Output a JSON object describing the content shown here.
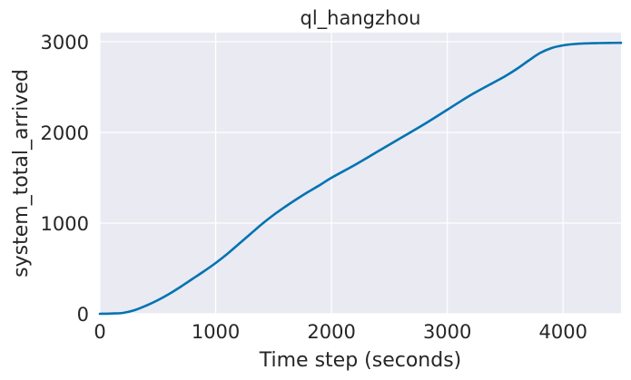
{
  "chart_data": {
    "type": "line",
    "title": "ql_hangzhou",
    "xlabel": "Time step (seconds)",
    "ylabel": "system_total_arrived",
    "xlim": [
      0,
      4500
    ],
    "ylim": [
      0,
      3100
    ],
    "xticks": [
      0,
      1000,
      2000,
      3000,
      4000
    ],
    "yticks": [
      0,
      1000,
      2000,
      3000
    ],
    "xtick_labels": [
      "0",
      "1000",
      "2000",
      "3000",
      "4000"
    ],
    "ytick_labels": [
      "0",
      "1000",
      "2000",
      "3000"
    ],
    "grid": true,
    "background": "#eaeaf2",
    "series": [
      {
        "color": "#0173b2",
        "x": [
          0,
          100,
          200,
          300,
          400,
          500,
          600,
          700,
          800,
          900,
          1000,
          1100,
          1200,
          1300,
          1400,
          1500,
          1600,
          1700,
          1800,
          1900,
          2000,
          2200,
          2400,
          2600,
          2800,
          3000,
          3200,
          3400,
          3500,
          3600,
          3700,
          3800,
          3900,
          4000,
          4100,
          4200,
          4300,
          4400,
          4500
        ],
        "y": [
          0,
          3,
          10,
          40,
          90,
          150,
          220,
          300,
          385,
          470,
          560,
          660,
          770,
          880,
          990,
          1090,
          1180,
          1265,
          1345,
          1420,
          1500,
          1640,
          1790,
          1940,
          2090,
          2250,
          2410,
          2550,
          2620,
          2700,
          2790,
          2875,
          2930,
          2960,
          2975,
          2982,
          2985,
          2987,
          2988
        ]
      }
    ]
  }
}
